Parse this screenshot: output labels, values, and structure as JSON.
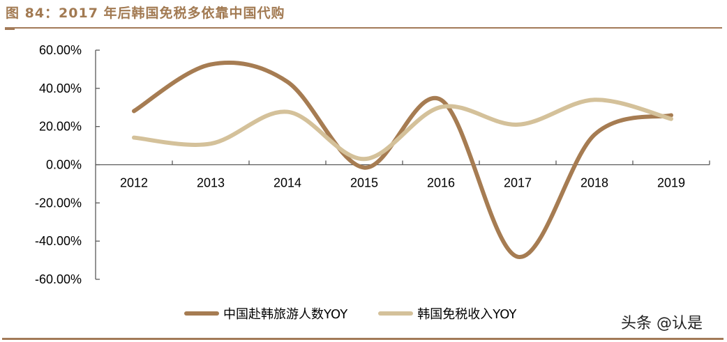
{
  "header": {
    "title": "图 84：2017 年后韩国免税多依靠中国代购"
  },
  "watermark": "头条 @认是",
  "colors": {
    "accent": "#A27A58",
    "series_dark": "#A67C52",
    "series_light": "#D4C19A",
    "axis": "#595959"
  },
  "chart_data": {
    "type": "line",
    "title": "图 84：2017 年后韩国免税多依靠中国代购",
    "xlabel": "",
    "ylabel": "",
    "categories": [
      "2012",
      "2013",
      "2014",
      "2015",
      "2016",
      "2017",
      "2018",
      "2019"
    ],
    "series": [
      {
        "name": "中国赴韩旅游人数YOY",
        "color": "#A67C52",
        "values": [
          0.281,
          0.525,
          0.434,
          -0.015,
          0.34,
          -0.482,
          0.157,
          0.259
        ]
      },
      {
        "name": "韩国免税收入YOY",
        "color": "#D4C19A",
        "values": [
          0.142,
          0.11,
          0.277,
          0.03,
          0.302,
          0.21,
          0.34,
          0.24
        ]
      }
    ],
    "ylim": [
      -0.6,
      0.6
    ],
    "yticks": [
      0.6,
      0.4,
      0.2,
      0.0,
      -0.2,
      -0.4,
      -0.6
    ],
    "ytick_labels": [
      "60.00%",
      "40.00%",
      "20.00%",
      "0.00%",
      "-20.00%",
      "-40.00%",
      "-60.00%"
    ],
    "smooth": true,
    "grid": false,
    "legend_position": "bottom"
  },
  "legend": {
    "items": [
      {
        "label": "中国赴韩旅游人数YOY",
        "color": "#A67C52"
      },
      {
        "label": "韩国免税收入YOY",
        "color": "#D4C19A"
      }
    ]
  }
}
